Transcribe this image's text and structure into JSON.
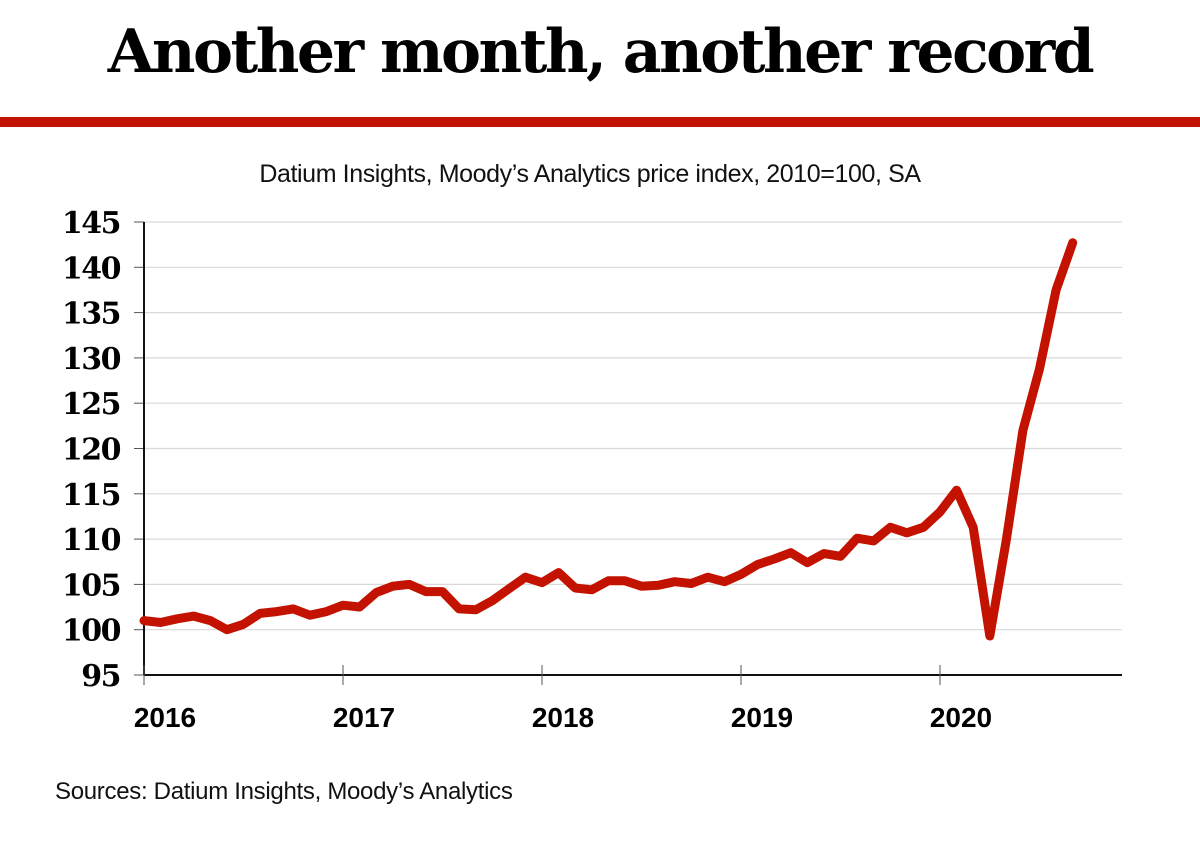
{
  "headline": "Another month, another record",
  "accent_color": "#c41200",
  "source": "Sources: Datium Insights, Moody’s Analytics",
  "chart_data": {
    "type": "line",
    "title": "Another month, another record",
    "subtitle": "Datium Insights, Moody’s Analytics price index, 2010=100, SA",
    "xlabel": "",
    "ylabel": "",
    "ylim": [
      95,
      145
    ],
    "yticks": [
      95,
      100,
      105,
      110,
      115,
      120,
      125,
      130,
      135,
      140,
      145
    ],
    "ytick_labels": [
      "95",
      "100",
      "105",
      "110",
      "115",
      "120",
      "125",
      "130",
      "135",
      "140",
      "145"
    ],
    "xlim": [
      2016.0,
      2020.92
    ],
    "xticks": [
      2016,
      2017,
      2018,
      2019,
      2020
    ],
    "xtick_labels": [
      "2016",
      "2017",
      "2018",
      "2019",
      "2020"
    ],
    "grid": "horizontal",
    "legend": "none",
    "series": [
      {
        "name": "Price index",
        "color": "#c41200",
        "start": "2016-01",
        "frequency": "monthly",
        "values": [
          101.0,
          100.8,
          101.2,
          101.5,
          101.0,
          100.0,
          100.6,
          101.8,
          102.0,
          102.3,
          101.6,
          102.0,
          102.7,
          102.5,
          104.1,
          104.8,
          105.0,
          104.2,
          104.2,
          102.3,
          102.2,
          103.2,
          104.5,
          105.8,
          105.2,
          106.3,
          104.6,
          104.4,
          105.4,
          105.4,
          104.8,
          104.9,
          105.3,
          105.1,
          105.8,
          105.3,
          106.1,
          107.2,
          107.8,
          108.5,
          107.4,
          108.4,
          108.1,
          110.1,
          109.8,
          111.3,
          110.7,
          111.3,
          113.0,
          115.4,
          111.3,
          99.3,
          109.9,
          122.0,
          128.8,
          137.5,
          142.7
        ]
      }
    ]
  }
}
